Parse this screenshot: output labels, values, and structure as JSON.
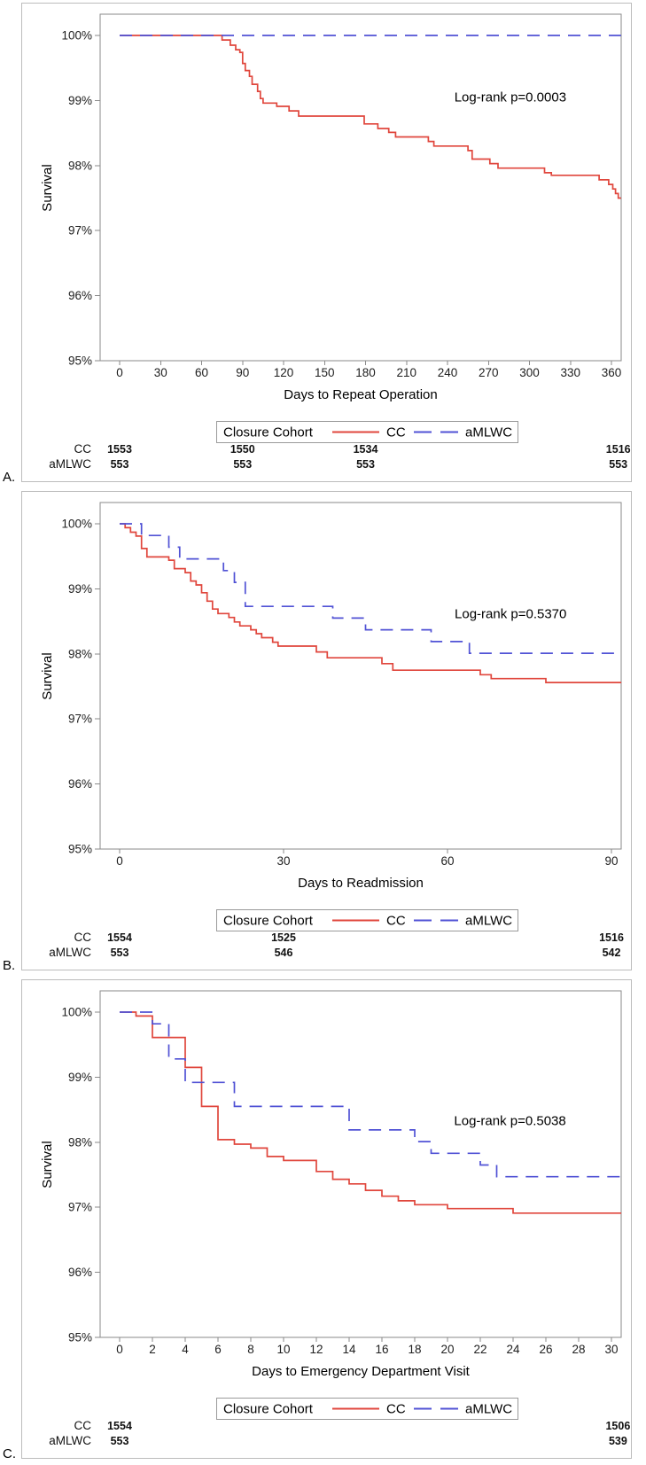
{
  "colors": {
    "background": "#ffffff",
    "panel_border": "#bcbcbc",
    "axis": "#8a8a8a",
    "tick_text": "#202020",
    "cc_line": "#e0463c",
    "cc_text": "#e8231a",
    "amlwc_line": "#5052d5",
    "amlwc_text": "#2a2ad0",
    "legend_border": "#9a9a9a"
  },
  "chart_data": [
    {
      "type": "line",
      "panel_label": "A.",
      "title": "",
      "ylabel": "Survival",
      "xlabel": "Days to Repeat Operation",
      "ylim": [
        95,
        100.3
      ],
      "y_ticks": [
        "100%",
        "99%",
        "98%",
        "97%",
        "96%",
        "95%"
      ],
      "x_ticks": [
        0,
        30,
        60,
        90,
        120,
        150,
        180,
        210,
        240,
        270,
        300,
        330,
        360
      ],
      "xlim": [
        0,
        367
      ],
      "grid": false,
      "legend_title": "Closure Cohort",
      "legend_position": "bottom",
      "annotation": {
        "text": "Log-rank p=0.0003",
        "x": 245,
        "y": 99.05
      },
      "series": [
        {
          "name": "CC",
          "color": "#e0463c",
          "style": "solid",
          "step_points": [
            [
              0,
              100
            ],
            [
              75,
              99.93
            ],
            [
              81,
              99.85
            ],
            [
              85,
              99.78
            ],
            [
              88,
              99.74
            ],
            [
              90,
              99.57
            ],
            [
              92,
              99.46
            ],
            [
              95,
              99.37
            ],
            [
              97,
              99.25
            ],
            [
              101,
              99.14
            ],
            [
              103,
              99.03
            ],
            [
              105,
              98.96
            ],
            [
              115,
              98.91
            ],
            [
              124,
              98.84
            ],
            [
              131,
              98.76
            ],
            [
              179,
              98.64
            ],
            [
              189,
              98.57
            ],
            [
              197,
              98.51
            ],
            [
              202,
              98.44
            ],
            [
              226,
              98.37
            ],
            [
              230,
              98.3
            ],
            [
              255,
              98.23
            ],
            [
              258,
              98.1
            ],
            [
              271,
              98.03
            ],
            [
              277,
              97.96
            ],
            [
              311,
              97.89
            ],
            [
              316,
              97.85
            ],
            [
              351,
              97.78
            ],
            [
              358,
              97.71
            ],
            [
              361,
              97.64
            ],
            [
              363,
              97.57
            ],
            [
              365,
              97.5
            ],
            [
              367,
              97.5
            ]
          ]
        },
        {
          "name": "aMLWC",
          "color": "#5052d5",
          "style": "dashed",
          "step_points": [
            [
              0,
              100
            ],
            [
              367,
              100
            ]
          ]
        }
      ],
      "at_risk": {
        "times": [
          0,
          90,
          180,
          365
        ],
        "rows": [
          {
            "name": "CC",
            "color": "#e8231a",
            "values": [
              "1553",
              "1550",
              "1534",
              "1516"
            ]
          },
          {
            "name": "aMLWC",
            "color": "#2a2ad0",
            "values": [
              "553",
              "553",
              "553",
              "553"
            ]
          }
        ]
      }
    },
    {
      "type": "line",
      "panel_label": "B.",
      "title": "",
      "ylabel": "Survival",
      "xlabel": "Days to Readmission",
      "ylim": [
        95,
        100.3
      ],
      "y_ticks": [
        "100%",
        "99%",
        "98%",
        "97%",
        "96%",
        "95%"
      ],
      "x_ticks": [
        0,
        30,
        60,
        90
      ],
      "xlim": [
        0,
        91.8
      ],
      "grid": false,
      "legend_title": "Closure Cohort",
      "legend_position": "bottom",
      "annotation": {
        "text": "Log-rank p=0.5370",
        "x": 61.3,
        "y": 98.62
      },
      "series": [
        {
          "name": "CC",
          "color": "#e0463c",
          "style": "solid",
          "step_points": [
            [
              0,
              100
            ],
            [
              1,
              99.94
            ],
            [
              2,
              99.87
            ],
            [
              3,
              99.81
            ],
            [
              4,
              99.62
            ],
            [
              5,
              99.49
            ],
            [
              9,
              99.44
            ],
            [
              10,
              99.31
            ],
            [
              12,
              99.25
            ],
            [
              13,
              99.12
            ],
            [
              14,
              99.06
            ],
            [
              15,
              98.94
            ],
            [
              16,
              98.81
            ],
            [
              17,
              98.69
            ],
            [
              18,
              98.62
            ],
            [
              20,
              98.56
            ],
            [
              21,
              98.49
            ],
            [
              22,
              98.43
            ],
            [
              24,
              98.37
            ],
            [
              25,
              98.31
            ],
            [
              26,
              98.25
            ],
            [
              28,
              98.18
            ],
            [
              29,
              98.12
            ],
            [
              36,
              98.03
            ],
            [
              38,
              97.94
            ],
            [
              48,
              97.85
            ],
            [
              50,
              97.75
            ],
            [
              66,
              97.68
            ],
            [
              68,
              97.62
            ],
            [
              78,
              97.56
            ],
            [
              91.8,
              97.56
            ]
          ]
        },
        {
          "name": "aMLWC",
          "color": "#5052d5",
          "style": "dashed",
          "step_points": [
            [
              0,
              100
            ],
            [
              4,
              99.82
            ],
            [
              9,
              99.64
            ],
            [
              11,
              99.46
            ],
            [
              19,
              99.28
            ],
            [
              21,
              99.1
            ],
            [
              23,
              98.73
            ],
            [
              39,
              98.55
            ],
            [
              45,
              98.37
            ],
            [
              57,
              98.19
            ],
            [
              64,
              98.01
            ],
            [
              91.8,
              98.01
            ]
          ]
        }
      ],
      "at_risk": {
        "times": [
          0,
          30,
          90
        ],
        "rows": [
          {
            "name": "CC",
            "color": "#e8231a",
            "values": [
              "1554",
              "1525",
              "1516"
            ]
          },
          {
            "name": "aMLWC",
            "color": "#2a2ad0",
            "values": [
              "553",
              "546",
              "542"
            ]
          }
        ]
      }
    },
    {
      "type": "line",
      "panel_label": "C.",
      "title": "",
      "ylabel": "Survival",
      "xlabel": "Days to Emergency Department Visit",
      "ylim": [
        95,
        100.3
      ],
      "y_ticks": [
        "100%",
        "99%",
        "98%",
        "97%",
        "96%",
        "95%"
      ],
      "x_ticks": [
        0,
        2,
        4,
        6,
        8,
        10,
        12,
        14,
        16,
        18,
        20,
        22,
        24,
        26,
        28,
        30
      ],
      "xlim": [
        0,
        30.6
      ],
      "grid": false,
      "legend_title": "Closure Cohort",
      "legend_position": "bottom",
      "annotation": {
        "text": "Log-rank p=0.5038",
        "x": 20.4,
        "y": 98.33
      },
      "series": [
        {
          "name": "CC",
          "color": "#e0463c",
          "style": "solid",
          "step_points": [
            [
              0,
              100
            ],
            [
              1,
              99.94
            ],
            [
              2,
              99.61
            ],
            [
              4,
              99.15
            ],
            [
              5,
              98.55
            ],
            [
              6,
              98.04
            ],
            [
              7,
              97.97
            ],
            [
              8,
              97.91
            ],
            [
              9,
              97.78
            ],
            [
              10,
              97.72
            ],
            [
              12,
              97.55
            ],
            [
              13,
              97.43
            ],
            [
              14,
              97.36
            ],
            [
              15,
              97.26
            ],
            [
              16,
              97.17
            ],
            [
              17,
              97.1
            ],
            [
              18,
              97.04
            ],
            [
              20,
              96.98
            ],
            [
              24,
              96.91
            ],
            [
              30.6,
              96.91
            ]
          ]
        },
        {
          "name": "aMLWC",
          "color": "#5052d5",
          "style": "dashed",
          "step_points": [
            [
              0,
              100
            ],
            [
              2,
              99.82
            ],
            [
              3,
              99.28
            ],
            [
              4,
              98.92
            ],
            [
              7,
              98.55
            ],
            [
              14,
              98.19
            ],
            [
              18,
              98.01
            ],
            [
              19,
              97.83
            ],
            [
              22,
              97.65
            ],
            [
              23,
              97.47
            ],
            [
              30.6,
              97.47
            ]
          ]
        }
      ],
      "at_risk": {
        "times": [
          0,
          30.4
        ],
        "rows": [
          {
            "name": "CC",
            "color": "#e8231a",
            "values": [
              "1554",
              "1506"
            ]
          },
          {
            "name": "aMLWC",
            "color": "#2a2ad0",
            "values": [
              "553",
              "539"
            ]
          }
        ]
      }
    }
  ]
}
